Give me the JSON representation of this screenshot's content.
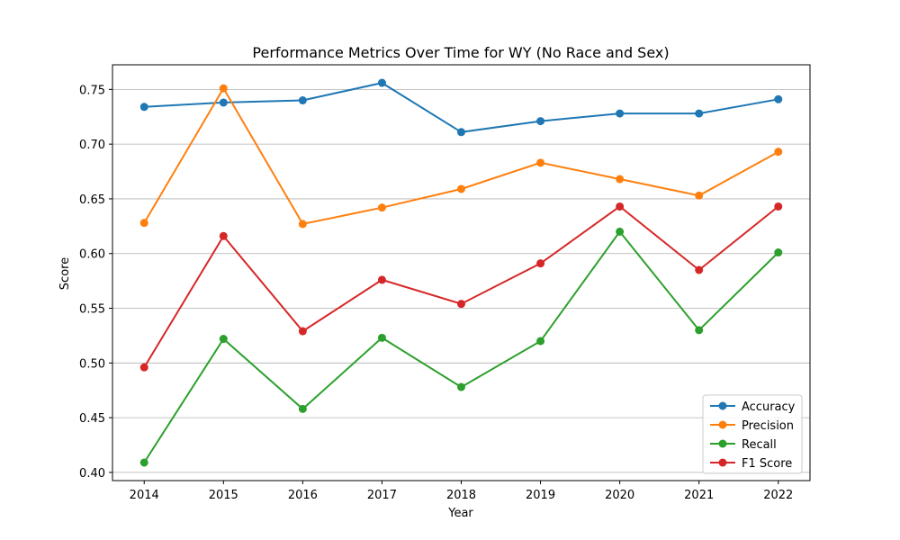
{
  "chart_data": {
    "type": "line",
    "title": "Performance Metrics Over Time for WY (No Race and Sex)",
    "xlabel": "Year",
    "ylabel": "Score",
    "x": [
      2014,
      2015,
      2016,
      2017,
      2018,
      2019,
      2020,
      2021,
      2022
    ],
    "x_tick_labels": [
      "2014",
      "2015",
      "2016",
      "2017",
      "2018",
      "2019",
      "2020",
      "2021",
      "2022"
    ],
    "y_ticks": [
      0.4,
      0.45,
      0.5,
      0.55,
      0.6,
      0.65,
      0.7,
      0.75
    ],
    "y_tick_labels": [
      "0.40",
      "0.45",
      "0.50",
      "0.55",
      "0.60",
      "0.65",
      "0.70",
      "0.75"
    ],
    "xlim": [
      2013.6,
      2022.4
    ],
    "ylim": [
      0.3925,
      0.7725
    ],
    "grid": "horizontal",
    "legend_position": "lower-right",
    "series": [
      {
        "name": "Accuracy",
        "color": "#1f77b4",
        "values": [
          0.734,
          0.738,
          0.74,
          0.756,
          0.711,
          0.721,
          0.728,
          0.728,
          0.741
        ]
      },
      {
        "name": "Precision",
        "color": "#ff7f0e",
        "values": [
          0.628,
          0.751,
          0.627,
          0.642,
          0.659,
          0.683,
          0.668,
          0.653,
          0.693
        ]
      },
      {
        "name": "Recall",
        "color": "#2ca02c",
        "values": [
          0.409,
          0.522,
          0.458,
          0.523,
          0.478,
          0.52,
          0.62,
          0.53,
          0.601
        ]
      },
      {
        "name": "F1 Score",
        "color": "#d62728",
        "values": [
          0.496,
          0.616,
          0.529,
          0.576,
          0.554,
          0.591,
          0.643,
          0.585,
          0.643
        ]
      }
    ]
  }
}
